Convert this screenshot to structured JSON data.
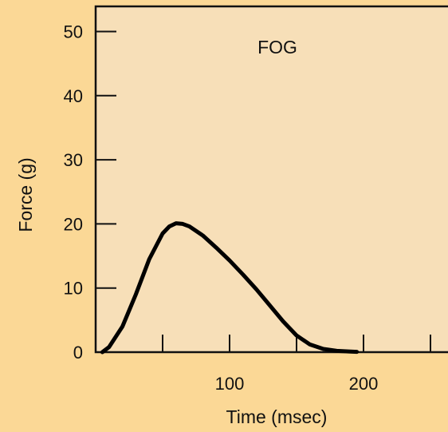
{
  "chart_data": {
    "type": "line",
    "title": "",
    "annotation": "FOG",
    "xlabel": "Time (msec)",
    "ylabel": "Force (g)",
    "xlim": [
      0,
      300
    ],
    "ylim": [
      0,
      50
    ],
    "x_ticks": [
      50,
      100,
      150,
      200,
      250
    ],
    "x_tick_labels": [
      "",
      "100",
      "",
      "200",
      ""
    ],
    "y_ticks": [
      0,
      10,
      20,
      30,
      40,
      50
    ],
    "y_tick_labels": [
      "0",
      "10",
      "20",
      "30",
      "40",
      "50"
    ],
    "grid": false,
    "colors": {
      "background": "#fbd896",
      "plot_area": "#f7dfb8",
      "line": "#000000"
    },
    "series": [
      {
        "x": [
          5,
          10,
          20,
          30,
          40,
          50,
          55,
          60,
          65,
          70,
          80,
          90,
          100,
          110,
          120,
          130,
          140,
          150,
          160,
          170,
          180,
          190,
          195
        ],
        "y": [
          0,
          0.8,
          4,
          9,
          14.5,
          18.5,
          19.6,
          20.1,
          20.0,
          19.6,
          18.2,
          16.3,
          14.3,
          12.1,
          9.8,
          7.3,
          4.8,
          2.6,
          1.2,
          0.5,
          0.2,
          0.1,
          0.05
        ]
      }
    ]
  }
}
